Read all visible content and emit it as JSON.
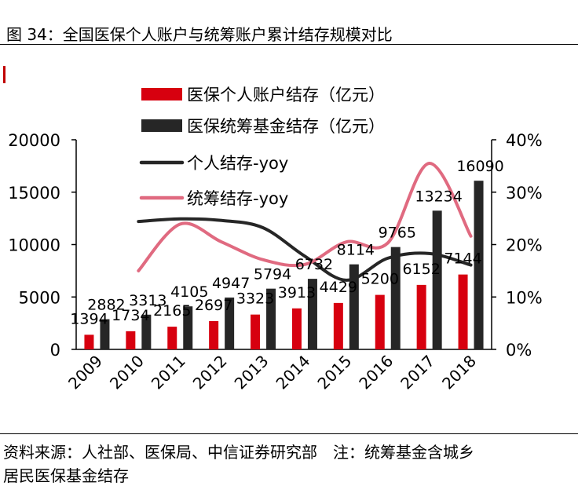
{
  "header": {
    "title": "图 34：全国医保个人账户与统筹账户累计结存规模对比"
  },
  "footer": {
    "source": "资料来源：人社部、医保局、中信证券研究部　注：统筹基金含城乡",
    "source_line2": "居民医保基金结存"
  },
  "chart_data": {
    "type": "bar",
    "categories": [
      "2009",
      "2010",
      "2011",
      "2012",
      "2013",
      "2014",
      "2015",
      "2016",
      "2017",
      "2018"
    ],
    "series": [
      {
        "name": "医保个人账户结存（亿元）",
        "kind": "bar",
        "axis": "left",
        "color": "#d7000f",
        "values": [
          1394,
          1734,
          2165,
          2697,
          3323,
          3913,
          4429,
          5200,
          6152,
          7144
        ]
      },
      {
        "name": "医保统筹基金结存（亿元）",
        "kind": "bar",
        "axis": "left",
        "color": "#262626",
        "values": [
          2882,
          3313,
          4105,
          4947,
          5794,
          6732,
          8114,
          9765,
          13234,
          16090
        ]
      },
      {
        "name": "个人结存-yoy",
        "kind": "line",
        "axis": "right",
        "color": "#262626",
        "values": [
          null,
          24.4,
          24.9,
          24.6,
          23.2,
          17.8,
          13.2,
          17.4,
          18.3,
          16.1
        ]
      },
      {
        "name": "统筹结存-yoy",
        "kind": "line",
        "axis": "right",
        "color": "#e06a80",
        "values": [
          null,
          15.0,
          23.9,
          20.5,
          17.1,
          16.2,
          20.5,
          20.3,
          35.5,
          21.6
        ]
      }
    ],
    "left_axis": {
      "ylim": [
        0,
        20000
      ],
      "ticks": [
        "0",
        "5000",
        "10000",
        "15000",
        "20000"
      ]
    },
    "right_axis": {
      "ylim": [
        0,
        40
      ],
      "ticks": [
        "0%",
        "10%",
        "20%",
        "30%",
        "40%"
      ]
    },
    "legend_position": "top-left",
    "grid": false
  }
}
